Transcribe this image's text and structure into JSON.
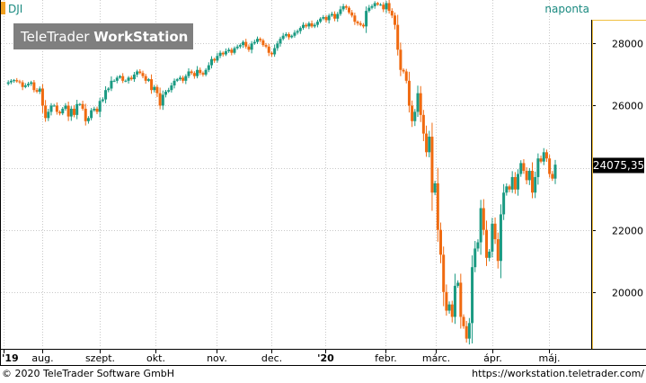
{
  "chart_data": {
    "type": "candlestick",
    "symbol": "DJI",
    "interval_label": "naponta",
    "watermark": {
      "part1": "TeleTrader",
      "part2": "WorkStation"
    },
    "last_price_label": "24075,35",
    "last_price": 24075.35,
    "ylim": [
      18200,
      29400
    ],
    "yticks": [
      {
        "value": 20000,
        "label": "20000"
      },
      {
        "value": 22000,
        "label": "22000"
      },
      {
        "value": 24000,
        "label": "24000"
      },
      {
        "value": 26000,
        "label": "26000"
      },
      {
        "value": 28000,
        "label": "28000"
      }
    ],
    "xtick_labels": [
      "'19",
      "aug.",
      "szept.",
      "okt.",
      "nov.",
      "dec.",
      "'20",
      "febr.",
      "márc.",
      "ápr.",
      "máj."
    ],
    "up_color": "#1a9a82",
    "down_color": "#f06a10",
    "grid": true,
    "price_series": [
      26700,
      26750,
      26800,
      26820,
      26780,
      26750,
      26600,
      26650,
      26700,
      26750,
      26500,
      26450,
      26550,
      26000,
      25600,
      25800,
      26000,
      26000,
      25800,
      25750,
      25900,
      26000,
      25650,
      25900,
      25700,
      26050,
      26050,
      25900,
      25500,
      25600,
      25850,
      25900,
      25800,
      26150,
      26200,
      26500,
      26550,
      26800,
      26800,
      26900,
      26950,
      26800,
      26800,
      26900,
      26850,
      27000,
      27100,
      27050,
      26950,
      26800,
      26850,
      26500,
      26600,
      26400,
      26000,
      26350,
      26450,
      26500,
      26650,
      26800,
      26850,
      26900,
      26800,
      26950,
      27100,
      27050,
      26950,
      27150,
      27050,
      27000,
      27150,
      27300,
      27500,
      27450,
      27600,
      27700,
      27650,
      27750,
      27800,
      27700,
      27850,
      27900,
      27950,
      28050,
      27900,
      27800,
      28000,
      28050,
      28150,
      28100,
      27950,
      27900,
      27700,
      27650,
      27850,
      28000,
      28150,
      28250,
      28300,
      28200,
      28250,
      28350,
      28400,
      28500,
      28600,
      28550,
      28650,
      28550,
      28600,
      28700,
      28800,
      28850,
      28750,
      28900,
      28950,
      28800,
      28950,
      29100,
      29200,
      29150,
      29000,
      28900,
      28700,
      28650,
      28600,
      28550,
      29050,
      29150,
      29200,
      29300,
      29250,
      29250,
      29100,
      29300,
      29050,
      28900,
      28600,
      27800,
      27150,
      27100,
      26800,
      26000,
      25500,
      25800,
      26400,
      25700,
      25100,
      24500,
      25000,
      23200,
      23500,
      22000,
      21200,
      20000,
      19400,
      19600,
      19200,
      20200,
      20300,
      19200,
      18900,
      18500,
      19000,
      20800,
      21400,
      21600,
      22700,
      22000,
      21100,
      21300,
      22200,
      21700,
      21000,
      22500,
      23200,
      23400,
      23300,
      23700,
      23300,
      23800,
      24150,
      23900,
      23600,
      23900,
      23200,
      23700,
      24300,
      24200,
      24500,
      24300,
      23800,
      23650,
      24100
    ]
  }
}
